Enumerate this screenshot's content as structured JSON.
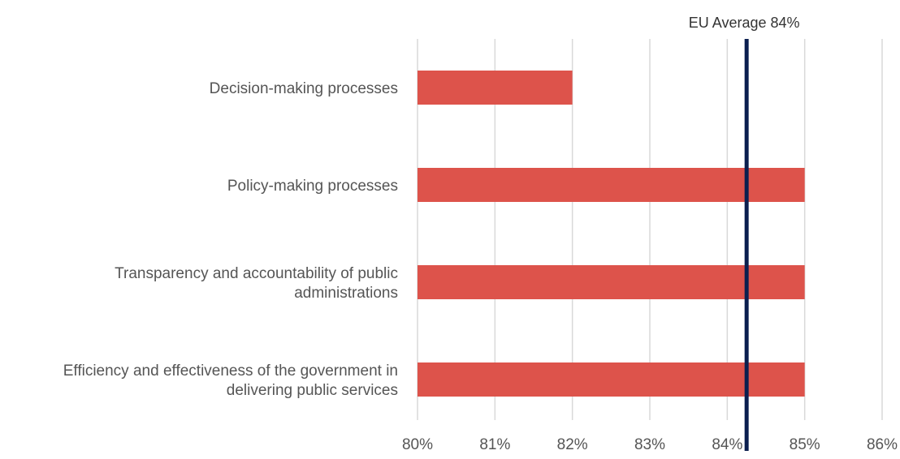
{
  "chart_data": {
    "type": "bar",
    "orientation": "horizontal",
    "categories": [
      [
        "Decision-making processes"
      ],
      [
        "Policy-making processes"
      ],
      [
        "Transparency and accountability of public",
        "administrations"
      ],
      [
        "Efficiency and effectiveness of the government in",
        "delivering public services"
      ]
    ],
    "values": [
      82,
      85,
      85,
      85
    ],
    "xlim": [
      80,
      86
    ],
    "x_ticks": [
      80,
      81,
      82,
      83,
      84,
      85,
      86
    ],
    "tick_suffix": "%",
    "grid": true,
    "reference_line": {
      "value": 84.25,
      "label": "EU Average 84%"
    },
    "colors": {
      "bar": "#dd534b",
      "reference_line": "#0b1f4f",
      "grid": "#d9d9d9"
    }
  }
}
